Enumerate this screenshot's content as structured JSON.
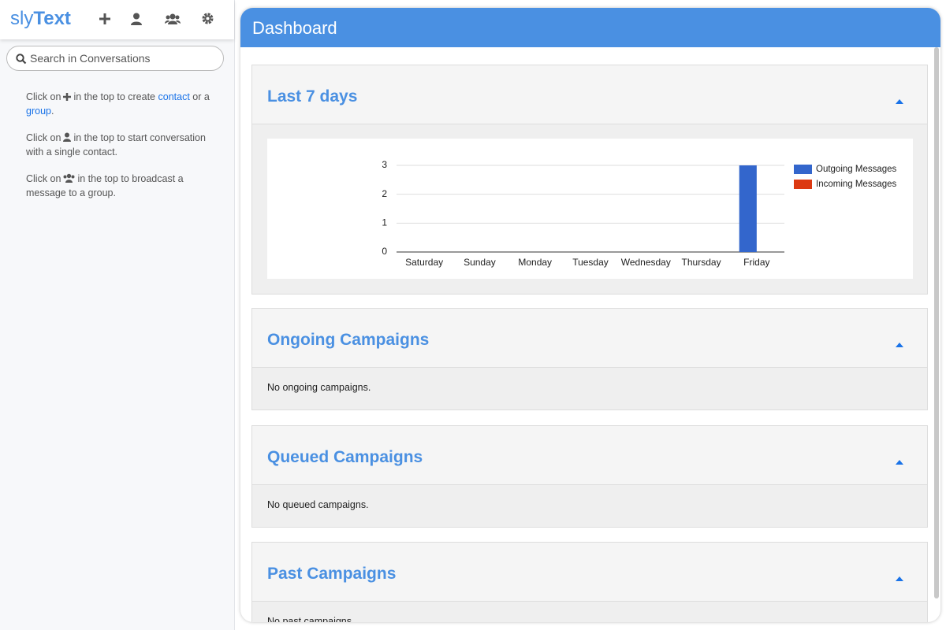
{
  "sidebar": {
    "brand": [
      "sly",
      "Text"
    ],
    "search_placeholder": "Search in Conversations",
    "help": [
      {
        "before": "Click on",
        "after": "in the top to create",
        "link1": "contact",
        "mid": "or a",
        "link2": "group",
        "end": "."
      },
      {
        "before": "Click on",
        "after": "in the top to start conversation with a single contact."
      },
      {
        "before": "Click on",
        "after": "in the top to broadcast a message to a group."
      }
    ]
  },
  "dashboard": {
    "title": "Dashboard",
    "sections": [
      {
        "title": "Last 7 days"
      },
      {
        "title": "Ongoing Campaigns",
        "body": "No ongoing campaigns."
      },
      {
        "title": "Queued Campaigns",
        "body": "No queued campaigns."
      },
      {
        "title": "Past Campaigns",
        "body": "No past campaigns."
      }
    ]
  },
  "chart_data": {
    "type": "bar",
    "categories": [
      "Saturday",
      "Sunday",
      "Monday",
      "Tuesday",
      "Wednesday",
      "Thursday",
      "Friday"
    ],
    "series": [
      {
        "name": "Outgoing Messages",
        "color": "#3366cc",
        "values": [
          0,
          0,
          0,
          0,
          0,
          0,
          3
        ]
      },
      {
        "name": "Incoming Messages",
        "color": "#dc3912",
        "values": [
          0,
          0,
          0,
          0,
          0,
          0,
          0
        ]
      }
    ],
    "ylim": [
      0,
      3
    ],
    "yticks": [
      0,
      1,
      2,
      3
    ],
    "grid": true,
    "legend": "right"
  }
}
